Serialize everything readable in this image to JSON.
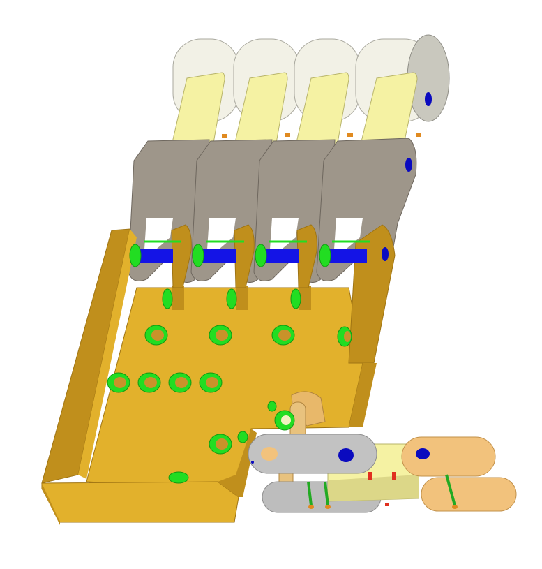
{
  "scene": {
    "type": "cad-render",
    "background": "#ffffff",
    "colors": {
      "base_plate": "#E2B12C",
      "base_plate_dark": "#C08F1C",
      "base_plate_edge": "#9F7413",
      "top_links": "#F2F1E6",
      "top_links_shade": "#C9C8BE",
      "yellow_links": "#F5F2A3",
      "yellow_links_shade": "#D8D485",
      "grey_links": "#9E968A",
      "grey_links_dark": "#7E776D",
      "shaft": "#1414E6",
      "bushing_green": "#22DD22",
      "bushing_hole": "#C9922A",
      "grey_plate": "#C2C2C2",
      "orange_plate": "#F2C27C",
      "red_pin": "#E03020",
      "navy_hole": "#0A0ABF"
    },
    "finger_count": 4,
    "plate_hole_rows": [
      4,
      4,
      1
    ]
  }
}
